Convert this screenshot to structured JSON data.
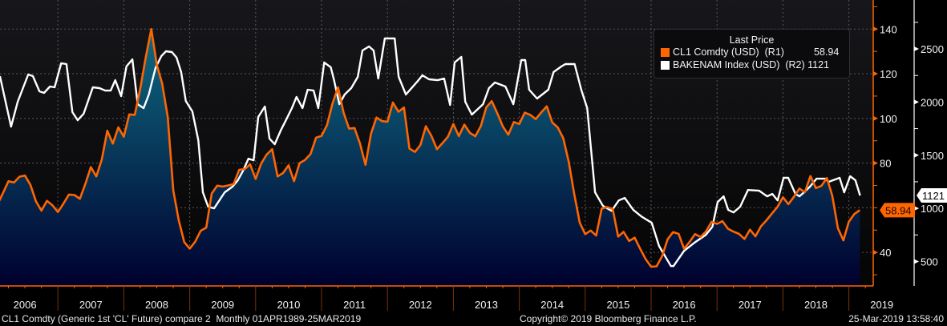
{
  "chart_data": {
    "type": "line",
    "title": "Last Price",
    "colors": {
      "oil": "#ff6600",
      "rigs": "#ffffff",
      "fill_top": "#0e6a82",
      "fill_bottom": "#00002e",
      "grid": "#55555c"
    },
    "x_tick_labels": [
      "2006",
      "2007",
      "2008",
      "2009",
      "2010",
      "2011",
      "2012",
      "2013",
      "2014",
      "2015",
      "2016",
      "2017",
      "2018",
      "2019"
    ],
    "y_right1": {
      "label": "R1",
      "ticks": [
        40,
        80,
        100,
        120,
        140
      ],
      "ylim": [
        25,
        153
      ]
    },
    "y_right2": {
      "label": "R2",
      "ticks": [
        500,
        1000,
        1500,
        2000,
        2500
      ],
      "ylim": [
        270,
        2960
      ]
    },
    "series": [
      {
        "name": "CL1 Comdty (USD)",
        "axis": "(R1)",
        "last": "58.94",
        "start": "2006-01",
        "frequency": "monthly",
        "values": [
          67.9,
          61.4,
          66.6,
          71.9,
          71.3,
          73.9,
          74.4,
          70.3,
          62.9,
          58.7,
          63.1,
          61.1,
          58.1,
          61.8,
          65.9,
          65.7,
          64.0,
          70.7,
          78.2,
          74.0,
          81.7,
          94.5,
          88.7,
          96.0,
          91.8,
          101.8,
          101.6,
          113.5,
          127.4,
          140.0,
          124.1,
          115.5,
          100.6,
          67.8,
          54.4,
          44.6,
          41.7,
          44.8,
          49.7,
          51.1,
          66.3,
          69.9,
          69.5,
          70.0,
          70.6,
          77.0,
          77.3,
          79.4,
          72.9,
          79.7,
          83.8,
          86.2,
          74.0,
          75.6,
          79.0,
          71.9,
          80.0,
          81.4,
          84.1,
          91.4,
          92.2,
          97.0,
          106.7,
          113.9,
          102.7,
          95.4,
          95.7,
          88.8,
          79.2,
          93.2,
          100.4,
          98.8,
          98.5,
          107.1,
          103.0,
          104.9,
          86.5,
          85.0,
          88.1,
          96.5,
          92.2,
          86.2,
          88.9,
          91.8,
          97.5,
          92.1,
          97.2,
          93.5,
          92.0,
          96.6,
          105.0,
          107.7,
          102.3,
          96.4,
          92.7,
          98.4,
          97.5,
          102.6,
          101.6,
          99.7,
          102.7,
          105.4,
          98.2,
          96.0,
          91.2,
          80.5,
          66.2,
          53.3,
          48.2,
          49.8,
          47.6,
          59.6,
          60.3,
          59.5,
          47.1,
          49.2,
          45.1,
          46.6,
          41.7,
          37.0,
          33.6,
          33.8,
          38.3,
          45.9,
          49.1,
          48.3,
          41.6,
          44.7,
          48.2,
          46.9,
          49.4,
          53.7,
          52.8,
          54.0,
          50.6,
          49.3,
          48.3,
          46.0,
          50.2,
          47.2,
          51.7,
          54.4,
          57.4,
          60.4,
          64.7,
          61.6,
          64.9,
          68.6,
          67.0,
          74.2,
          68.8,
          69.8,
          73.3,
          65.3,
          50.9,
          45.4,
          53.8,
          57.2,
          58.94
        ]
      },
      {
        "name": "BAKENAM Index (USD)",
        "axis": "(R2)",
        "last": "1121",
        "points": [
          [
            2006.12,
            2244
          ],
          [
            2006.29,
            1769
          ],
          [
            2006.39,
            2003
          ],
          [
            2006.55,
            2259
          ],
          [
            2006.62,
            2244
          ],
          [
            2006.72,
            2101
          ],
          [
            2006.79,
            2086
          ],
          [
            2006.88,
            2146
          ],
          [
            2006.95,
            2139
          ],
          [
            2007.05,
            2365
          ],
          [
            2007.13,
            2357
          ],
          [
            2007.22,
            1905
          ],
          [
            2007.3,
            1829
          ],
          [
            2007.39,
            1890
          ],
          [
            2007.53,
            2139
          ],
          [
            2007.63,
            2131
          ],
          [
            2007.72,
            2108
          ],
          [
            2007.8,
            2108
          ],
          [
            2007.87,
            2206
          ],
          [
            2007.96,
            2056
          ],
          [
            2008.04,
            2335
          ],
          [
            2008.13,
            2402
          ],
          [
            2008.21,
            1980
          ],
          [
            2008.3,
            1943
          ],
          [
            2008.38,
            2071
          ],
          [
            2008.48,
            2320
          ],
          [
            2008.57,
            2433
          ],
          [
            2008.64,
            2478
          ],
          [
            2008.73,
            2470
          ],
          [
            2008.8,
            2418
          ],
          [
            2008.87,
            2282
          ],
          [
            2008.94,
            2010
          ],
          [
            2009.04,
            1912
          ],
          [
            2009.13,
            1641
          ],
          [
            2009.2,
            1151
          ],
          [
            2009.28,
            1015
          ],
          [
            2009.37,
            1000
          ],
          [
            2009.53,
            1151
          ],
          [
            2009.65,
            1204
          ],
          [
            2009.73,
            1264
          ],
          [
            2009.81,
            1354
          ],
          [
            2009.89,
            1467
          ],
          [
            2009.97,
            1452
          ],
          [
            2010.04,
            1860
          ],
          [
            2010.14,
            1958
          ],
          [
            2010.21,
            1656
          ],
          [
            2010.29,
            1603
          ],
          [
            2010.38,
            1731
          ],
          [
            2010.46,
            1829
          ],
          [
            2010.55,
            1943
          ],
          [
            2010.62,
            2048
          ],
          [
            2010.71,
            1943
          ],
          [
            2010.79,
            2116
          ],
          [
            2010.88,
            2108
          ],
          [
            2010.95,
            1943
          ],
          [
            2011.04,
            2372
          ],
          [
            2011.14,
            2327
          ],
          [
            2011.19,
            2206
          ],
          [
            2011.27,
            1980
          ],
          [
            2011.35,
            2071
          ],
          [
            2011.45,
            2131
          ],
          [
            2011.55,
            2237
          ],
          [
            2011.62,
            2485
          ],
          [
            2011.72,
            2523
          ],
          [
            2011.79,
            2485
          ],
          [
            2011.86,
            2221
          ],
          [
            2011.96,
            2598
          ],
          [
            2012.11,
            2598
          ],
          [
            2012.17,
            2237
          ],
          [
            2012.28,
            2071
          ],
          [
            2012.45,
            2191
          ],
          [
            2012.53,
            2252
          ],
          [
            2012.63,
            2214
          ],
          [
            2012.76,
            2206
          ],
          [
            2012.86,
            2221
          ],
          [
            2012.95,
            1973
          ],
          [
            2013.02,
            2372
          ],
          [
            2013.12,
            2425
          ],
          [
            2013.18,
            2003
          ],
          [
            2013.28,
            1882
          ],
          [
            2013.45,
            1980
          ],
          [
            2013.54,
            2131
          ],
          [
            2013.63,
            2184
          ],
          [
            2013.79,
            2146
          ],
          [
            2013.91,
            1980
          ],
          [
            2014.03,
            2395
          ],
          [
            2014.09,
            2395
          ],
          [
            2014.15,
            2116
          ],
          [
            2014.27,
            2033
          ],
          [
            2014.44,
            2116
          ],
          [
            2014.52,
            2282
          ],
          [
            2014.64,
            2335
          ],
          [
            2014.7,
            2357
          ],
          [
            2014.84,
            2357
          ],
          [
            2014.94,
            2116
          ],
          [
            2015.03,
            1943
          ],
          [
            2015.15,
            1151
          ],
          [
            2015.27,
            1023
          ],
          [
            2015.4,
            977
          ],
          [
            2015.51,
            1075
          ],
          [
            2015.6,
            1098
          ],
          [
            2015.73,
            985
          ],
          [
            2015.85,
            925
          ],
          [
            2016.01,
            864
          ],
          [
            2016.12,
            646
          ],
          [
            2016.3,
            457
          ],
          [
            2016.34,
            457
          ],
          [
            2016.5,
            600
          ],
          [
            2016.67,
            683
          ],
          [
            2016.83,
            751
          ],
          [
            2016.93,
            827
          ],
          [
            2017.01,
            1060
          ],
          [
            2017.1,
            1113
          ],
          [
            2017.17,
            985
          ],
          [
            2017.25,
            962
          ],
          [
            2017.35,
            1015
          ],
          [
            2017.47,
            1173
          ],
          [
            2017.64,
            1166
          ],
          [
            2017.76,
            1113
          ],
          [
            2017.84,
            1136
          ],
          [
            2017.92,
            1075
          ],
          [
            2018.01,
            1287
          ],
          [
            2018.08,
            1287
          ],
          [
            2018.19,
            1136
          ],
          [
            2018.25,
            1113
          ],
          [
            2018.32,
            1151
          ],
          [
            2018.41,
            1204
          ],
          [
            2018.51,
            1279
          ],
          [
            2018.65,
            1279
          ],
          [
            2018.69,
            1249
          ],
          [
            2018.86,
            1287
          ],
          [
            2018.93,
            1151
          ],
          [
            2019.02,
            1302
          ],
          [
            2019.1,
            1264
          ],
          [
            2019.17,
            1121
          ]
        ]
      }
    ]
  },
  "footer": {
    "left": "CL1 Comdty (Generic 1st 'CL' Future) compare 2  Monthly 01APR1989-25MAR2019",
    "center": "Copyright© 2019 Bloomberg Finance L.P.",
    "right": "25-Mar-2019 13:58:40"
  }
}
